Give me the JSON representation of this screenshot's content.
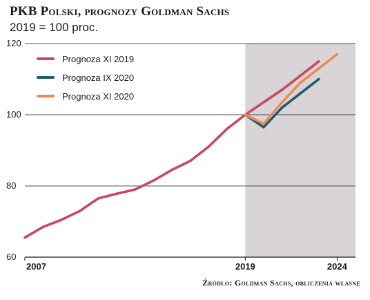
{
  "chart_data": {
    "type": "line",
    "title": "PKB Polski, prognozy Goldman Sachs",
    "subtitle": "2019 = 100 proc.",
    "source": "Źródło: Goldman Sachs, obliczenia własne",
    "y_ticks": [
      "120",
      "100",
      "80",
      "60"
    ],
    "ylim": [
      60,
      120
    ],
    "xlim": [
      2007,
      2025
    ],
    "x_tick_labels": [
      {
        "value": 2007,
        "label": "2007"
      },
      {
        "value": 2019,
        "label": "2019"
      },
      {
        "value": 2024,
        "label": "2024"
      }
    ],
    "shaded_region": {
      "from": 2019,
      "to": 2025,
      "color": "#d8d4d8"
    },
    "grid": true,
    "legend_position": "top-left",
    "series": [
      {
        "name": "Prognoza XI 2019",
        "color": "#c8495f",
        "points": [
          [
            2007,
            65.5
          ],
          [
            2008,
            68.5
          ],
          [
            2009,
            70.5
          ],
          [
            2010,
            73.0
          ],
          [
            2011,
            76.5
          ],
          [
            2012,
            77.8
          ],
          [
            2013,
            79.0
          ],
          [
            2014,
            81.5
          ],
          [
            2015,
            84.5
          ],
          [
            2016,
            87.0
          ],
          [
            2017,
            91.0
          ],
          [
            2018,
            96.0
          ],
          [
            2019,
            100.0
          ],
          [
            2020,
            103.5
          ],
          [
            2021,
            107.0
          ],
          [
            2022,
            111.0
          ],
          [
            2023,
            115.0
          ]
        ]
      },
      {
        "name": "Prognoza IX 2020",
        "color": "#1f5a6e",
        "points": [
          [
            2019,
            100.0
          ],
          [
            2020,
            96.5
          ],
          [
            2021,
            102.0
          ],
          [
            2022,
            106.0
          ],
          [
            2023,
            110.0
          ]
        ]
      },
      {
        "name": "Prognoza XI 2020",
        "color": "#ec8a55",
        "points": [
          [
            2019,
            100.0
          ],
          [
            2020,
            97.5
          ],
          [
            2021,
            103.5
          ],
          [
            2022,
            109.0
          ],
          [
            2023,
            113.0
          ],
          [
            2024,
            117.0
          ]
        ]
      }
    ]
  }
}
